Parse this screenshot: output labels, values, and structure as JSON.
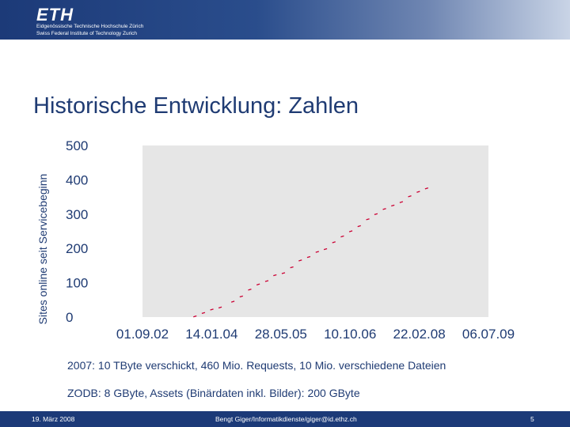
{
  "header": {
    "logo": "ETH",
    "logo_line1": "Eidgenössische Technische Hochschule Zürich",
    "logo_line2": "Swiss Federal Institute of Technology Zurich"
  },
  "slide": {
    "title": "Historische Entwicklung: Zahlen",
    "note1": "2007: 10 TByte verschickt, 460 Mio. Requests, 10 Mio. verschiedene Dateien",
    "note2": "ZODB: 8 GByte, Assets (Binärdaten inkl. Bilder): 200 GByte"
  },
  "chart_data": {
    "type": "scatter",
    "ylabel": "Sites online seit Servicebeginn",
    "xlabel": "",
    "x_ticks": [
      "01.09.02",
      "14.01.04",
      "28.05.05",
      "10.10.06",
      "22.02.08",
      "06.07.09"
    ],
    "y_ticks": [
      0,
      100,
      200,
      300,
      400,
      500
    ],
    "x_range": [
      "01.09.02",
      "06.07.09"
    ],
    "ylim": [
      0,
      500
    ],
    "grid": false,
    "series_color": "#cc0033",
    "points": [
      {
        "x": "15.09.03",
        "y": 2
      },
      {
        "x": "15.11.03",
        "y": 12
      },
      {
        "x": "15.01.04",
        "y": 22
      },
      {
        "x": "15.03.04",
        "y": 28
      },
      {
        "x": "15.06.04",
        "y": 45
      },
      {
        "x": "15.08.04",
        "y": 60
      },
      {
        "x": "15.10.04",
        "y": 80
      },
      {
        "x": "15.12.04",
        "y": 95
      },
      {
        "x": "15.02.05",
        "y": 105
      },
      {
        "x": "15.04.05",
        "y": 122
      },
      {
        "x": "15.06.05",
        "y": 128
      },
      {
        "x": "15.08.05",
        "y": 145
      },
      {
        "x": "15.10.05",
        "y": 165
      },
      {
        "x": "15.12.05",
        "y": 175
      },
      {
        "x": "15.02.06",
        "y": 190
      },
      {
        "x": "15.04.06",
        "y": 198
      },
      {
        "x": "15.06.06",
        "y": 218
      },
      {
        "x": "15.08.06",
        "y": 235
      },
      {
        "x": "15.10.06",
        "y": 250
      },
      {
        "x": "15.12.06",
        "y": 265
      },
      {
        "x": "15.02.07",
        "y": 285
      },
      {
        "x": "15.04.07",
        "y": 300
      },
      {
        "x": "15.06.07",
        "y": 315
      },
      {
        "x": "15.08.07",
        "y": 325
      },
      {
        "x": "15.10.07",
        "y": 335
      },
      {
        "x": "15.12.07",
        "y": 352
      },
      {
        "x": "15.02.08",
        "y": 365
      },
      {
        "x": "15.04.08",
        "y": 375
      }
    ]
  },
  "footer": {
    "date": "19. März 2008",
    "author": "Bengt Giger/Informatikdienste/giger@id.ethz.ch",
    "page": "5"
  }
}
